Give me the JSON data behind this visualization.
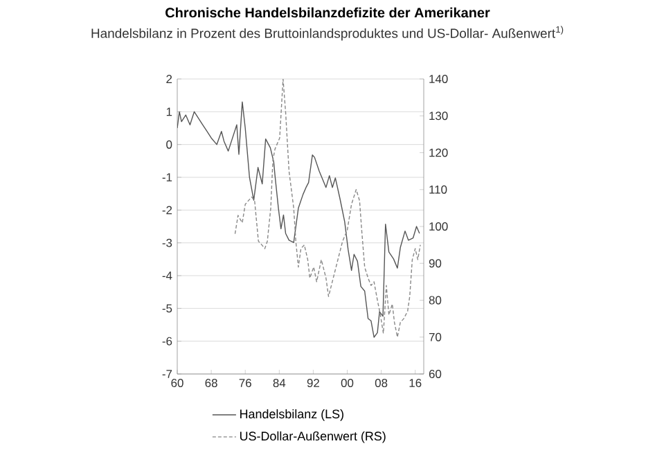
{
  "chart_data": {
    "type": "line",
    "title": "Chronische Handelsbilanzdefizite  der Amerikaner",
    "subtitle": "Handelsbilanz in Prozent des Bruttoinlandsproduktes und US-Dollar- Außenwert$^{1)}$",
    "xlim": [
      1960,
      2018
    ],
    "xticks": [
      {
        "value": 1960,
        "label": "60"
      },
      {
        "value": 1968,
        "label": "68"
      },
      {
        "value": 1976,
        "label": "76"
      },
      {
        "value": 1984,
        "label": "84"
      },
      {
        "value": 1992,
        "label": "92"
      },
      {
        "value": 2000,
        "label": "00"
      },
      {
        "value": 2008,
        "label": "08"
      },
      {
        "value": 2016,
        "label": "16"
      }
    ],
    "ylim": [
      -7,
      2
    ],
    "yticks": [
      -7,
      -6,
      -5,
      -4,
      -3,
      -2,
      -1,
      0,
      1,
      2
    ],
    "y2lim": [
      60,
      140
    ],
    "y2ticks": [
      60,
      70,
      80,
      90,
      100,
      110,
      120,
      130,
      140
    ],
    "grid": "y",
    "legend": "bottom",
    "marker": "none",
    "series": [
      {
        "name": "Handelsbilanz (LS)",
        "color": "#555555",
        "line_style": "solid",
        "x": [
          1960,
          1960.5,
          1961,
          1962,
          1963,
          1964,
          1965,
          1966,
          1967,
          1968,
          1969.3,
          1970.4,
          1971,
          1972,
          1973,
          1974,
          1974.5,
          1975.3,
          1976,
          1977,
          1978,
          1979,
          1980,
          1980.8,
          1981.9,
          1982.7,
          1983,
          1983.8,
          1984.4,
          1985,
          1985.5,
          1986.3,
          1987.4,
          1988.5,
          1989.6,
          1990.3,
          1990.9,
          1991.8,
          1992.3,
          1993.4,
          1995,
          1995.8,
          1996.5,
          1997.2,
          1998.3,
          1999.4,
          2000.2,
          2001,
          2001.6,
          2002.4,
          2003.2,
          2004.1,
          2004.9,
          2005.6,
          2006.3,
          2007.1,
          2007.6,
          2008.4,
          2009,
          2009.8,
          2010.9,
          2011.8,
          2012.5,
          2013.6,
          2014.4,
          2015.5,
          2016.3,
          2017
        ],
        "values": [
          0.5,
          1.0,
          0.7,
          0.9,
          0.6,
          1.0,
          0.8,
          0.6,
          0.4,
          0.2,
          0.0,
          0.4,
          0.1,
          -0.2,
          0.2,
          0.6,
          -0.3,
          1.3,
          0.5,
          -1.0,
          -1.7,
          -0.7,
          -1.2,
          0.17,
          -0.1,
          -0.53,
          -0.95,
          -1.94,
          -2.57,
          -2.15,
          -2.71,
          -2.92,
          -2.99,
          -1.94,
          -1.52,
          -1.31,
          -1.16,
          -0.32,
          -0.39,
          -0.81,
          -1.31,
          -0.95,
          -1.31,
          -1.02,
          -1.66,
          -2.36,
          -3.2,
          -3.84,
          -3.35,
          -3.56,
          -4.33,
          -4.47,
          -5.31,
          -5.38,
          -5.88,
          -5.74,
          -5.1,
          -5.24,
          -2.43,
          -3.28,
          -3.49,
          -3.77,
          -3.14,
          -2.64,
          -2.92,
          -2.85,
          -2.5,
          -2.71
        ]
      },
      {
        "name": "US-Dollar-Außenwert (RS)",
        "color": "#888888",
        "line_style": "dashed",
        "axis": "y2",
        "x": [
          1973.6,
          1974.3,
          1975.3,
          1976,
          1977.5,
          1978.2,
          1979.1,
          1979.9,
          1980.6,
          1981.2,
          1982,
          1982.5,
          1983,
          1984.1,
          1984.9,
          1985.5,
          1986.3,
          1987.4,
          1987.9,
          1988.5,
          1989.1,
          1989.9,
          1990.7,
          1991.2,
          1992.1,
          1992.8,
          1993.9,
          1995,
          1995.6,
          1996.7,
          1997.8,
          1998.9,
          2000,
          2001,
          2002.1,
          2002.9,
          2003.4,
          2004.1,
          2004.9,
          2005.6,
          2006.3,
          2007.1,
          2007.8,
          2008.5,
          2009.2,
          2009.8,
          2010.6,
          2011.1,
          2011.8,
          2012.5,
          2013.3,
          2014.2,
          2014.7,
          2015.3,
          2016,
          2016.6,
          2017.2
        ],
        "values": [
          98,
          103,
          101,
          106,
          108,
          107,
          96,
          95,
          94,
          96,
          105,
          118,
          121,
          124,
          140,
          131,
          115,
          105,
          96,
          89,
          94,
          95,
          91,
          86,
          89,
          85,
          91,
          86,
          81,
          86,
          91,
          96,
          99,
          106,
          110,
          107,
          99,
          89,
          86,
          84,
          85,
          80,
          76,
          71,
          84,
          76,
          79,
          74,
          70,
          74,
          75,
          77,
          81,
          91,
          94,
          91,
          95
        ]
      }
    ]
  }
}
